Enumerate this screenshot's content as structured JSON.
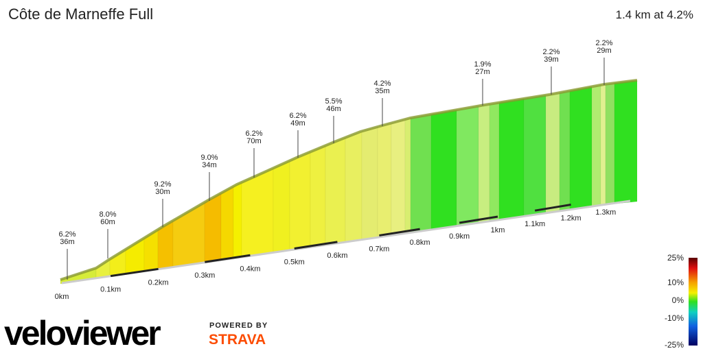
{
  "chart_data": {
    "type": "elevation-profile",
    "title": "Côte de Marneffe Full",
    "subtitle": "1.4 km at 4.2%",
    "annotations": [
      {
        "grade": "6.2%",
        "length": "36m"
      },
      {
        "grade": "8.0%",
        "length": "60m"
      },
      {
        "grade": "9.2%",
        "length": "30m"
      },
      {
        "grade": "9.0%",
        "length": "34m"
      },
      {
        "grade": "6.2%",
        "length": "70m"
      },
      {
        "grade": "6.2%",
        "length": "49m"
      },
      {
        "grade": "5.5%",
        "length": "46m"
      },
      {
        "grade": "4.2%",
        "length": "35m"
      },
      {
        "grade": "1.9%",
        "length": "27m"
      },
      {
        "grade": "2.2%",
        "length": "39m"
      },
      {
        "grade": "2.2%",
        "length": "29m"
      }
    ],
    "xlim": [
      0,
      1.4
    ],
    "xticks": [
      {
        "value": 0,
        "label": "0km"
      },
      {
        "value": 0.1,
        "label": "0.1km"
      },
      {
        "value": 0.2,
        "label": "0.2km"
      },
      {
        "value": 0.3,
        "label": "0.3km"
      },
      {
        "value": 0.4,
        "label": "0.4km"
      },
      {
        "value": 0.5,
        "label": "0.5km"
      },
      {
        "value": 0.6,
        "label": "0.6km"
      },
      {
        "value": 0.7,
        "label": "0.7km"
      },
      {
        "value": 0.8,
        "label": "0.8km"
      },
      {
        "value": 0.9,
        "label": "0.9km"
      },
      {
        "value": 1,
        "label": "1km"
      },
      {
        "value": 1.1,
        "label": "1.1km"
      },
      {
        "value": 1.2,
        "label": "1.2km"
      },
      {
        "value": 1.3,
        "label": "1.3km"
      }
    ],
    "color_scale_ticks": [
      {
        "value": 25,
        "label": "25%"
      },
      {
        "value": 10,
        "label": "10%"
      },
      {
        "value": 0,
        "label": "0%"
      },
      {
        "value": -10,
        "label": "-10%"
      },
      {
        "value": -25,
        "label": "-25%"
      }
    ]
  },
  "branding": {
    "logo": "veloviewer",
    "powered_by": "POWERED BY",
    "partner": "STRAVA"
  }
}
